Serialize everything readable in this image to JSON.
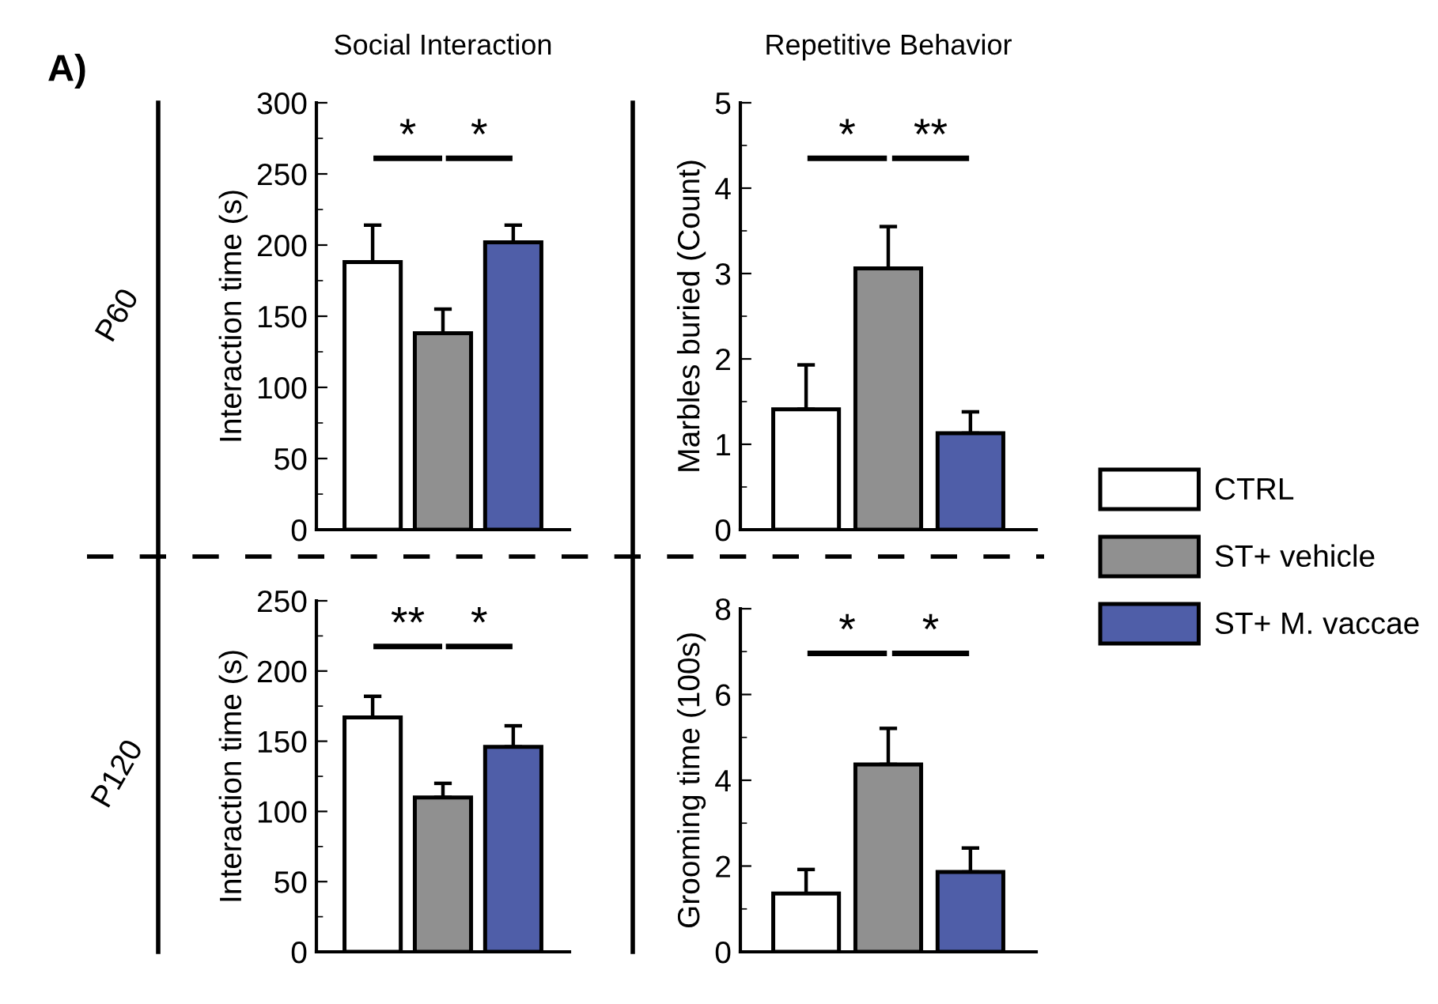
{
  "chart_data": [
    {
      "type": "bar",
      "title": "Social Interaction",
      "ylabel": "Interaction time (s)",
      "categories": [
        null
      ],
      "tick_labels": "y",
      "ylim": [
        0,
        300
      ],
      "yticks": [
        0,
        50,
        100,
        150,
        200,
        250,
        300
      ],
      "grid": false,
      "annotations": [
        "A)",
        "P60",
        "*",
        "*"
      ],
      "series": [
        {
          "color": "#ffffff",
          "values": [
            188
          ],
          "errors": [
            [
              188,
              214
            ]
          ]
        },
        {
          "color": "#909090",
          "values": [
            138
          ],
          "errors": [
            [
              138,
              155
            ]
          ]
        },
        {
          "color": "#4f5ea8",
          "values": [
            202
          ],
          "errors": [
            [
              202,
              214
            ]
          ]
        }
      ]
    },
    {
      "type": "bar",
      "title": "Repetitive Behavior",
      "ylabel": "Marbles buried (Count)",
      "categories": [
        null
      ],
      "tick_labels": "y",
      "ylim": [
        0,
        5
      ],
      "yticks": [
        0,
        1,
        2,
        3,
        4,
        5
      ],
      "grid": false,
      "legend": "right",
      "annotations": [
        "*",
        "**"
      ],
      "series": [
        {
          "name": "CTRL",
          "color": "#ffffff",
          "values": [
            1.41
          ],
          "errors": [
            [
              1.41,
              1.93
            ]
          ]
        },
        {
          "name": "ST+ vehicle",
          "color": "#909090",
          "values": [
            3.06
          ],
          "errors": [
            [
              3.06,
              3.55
            ]
          ]
        },
        {
          "name": "ST+ M. vaccae",
          "color": "#4f5ea8",
          "values": [
            1.13
          ],
          "errors": [
            [
              1.13,
              1.38
            ]
          ]
        }
      ]
    },
    {
      "type": "bar",
      "ylabel": "Interaction time (s)",
      "categories": [
        null
      ],
      "tick_labels": "y",
      "ylim": [
        0,
        250
      ],
      "yticks": [
        0,
        50,
        100,
        150,
        200,
        250
      ],
      "grid": false,
      "annotations": [
        "P120",
        "**",
        "*"
      ],
      "series": [
        {
          "color": "#ffffff",
          "values": [
            167
          ],
          "errors": [
            [
              167,
              182
            ]
          ]
        },
        {
          "color": "#909090",
          "values": [
            110
          ],
          "errors": [
            [
              110,
              120
            ]
          ]
        },
        {
          "color": "#4f5ea8",
          "values": [
            146
          ],
          "errors": [
            [
              146,
              161
            ]
          ]
        }
      ]
    },
    {
      "type": "bar",
      "ylabel": "Grooming time (100s)",
      "categories": [
        null
      ],
      "tick_labels": "y",
      "ylim": [
        0,
        8
      ],
      "yticks": [
        0,
        2,
        4,
        6,
        8
      ],
      "grid": false,
      "annotations": [
        "*",
        "*"
      ],
      "series": [
        {
          "color": "#ffffff",
          "values": [
            1.36
          ],
          "errors": [
            [
              1.36,
              1.92
            ]
          ]
        },
        {
          "color": "#909090",
          "values": [
            4.37
          ],
          "errors": [
            [
              4.37,
              5.21
            ]
          ]
        },
        {
          "color": "#4f5ea8",
          "values": [
            1.86
          ],
          "errors": [
            [
              1.86,
              2.42
            ]
          ]
        }
      ]
    }
  ]
}
